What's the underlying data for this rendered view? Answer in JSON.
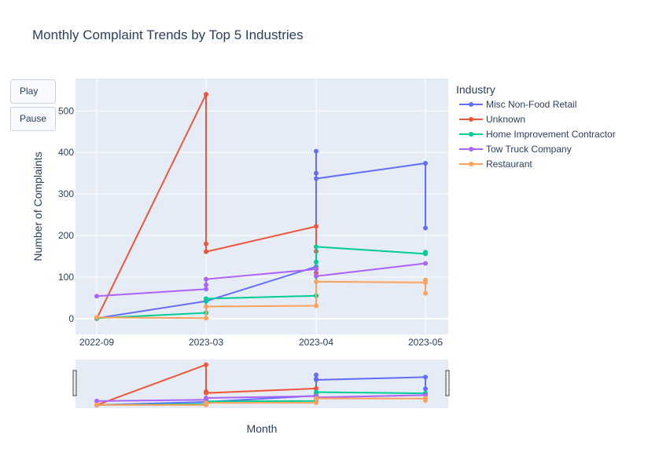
{
  "controls": {
    "play_label": "Play",
    "pause_label": "Pause"
  },
  "chart_data": {
    "type": "line",
    "title": "Monthly Complaint Trends by Top 5 Industries",
    "xlabel": "Month",
    "ylabel": "Number of Complaints",
    "legend_title": "Industry",
    "legend_position": "right",
    "grid": true,
    "x_categories": [
      "2022-09",
      "2023-03",
      "2023-04",
      "2023-05"
    ],
    "ylim": [
      -38,
      578
    ],
    "yticks": [
      0,
      100,
      200,
      300,
      400,
      500
    ],
    "series": [
      {
        "name": "Misc Non-Food Retail",
        "color": "#636efa",
        "x": [
          "2022-09",
          "2023-03",
          "2023-04",
          "2023-04",
          "2023-04",
          "2023-04",
          "2023-05",
          "2023-05"
        ],
        "y": [
          1,
          42,
          125,
          403,
          350,
          337,
          374,
          218
        ]
      },
      {
        "name": "Unknown",
        "color": "#ef553b",
        "x": [
          "2022-09",
          "2023-03",
          "2023-03",
          "2023-03",
          "2023-04",
          "2023-04",
          "2023-04",
          "2023-04"
        ],
        "y": [
          0,
          540,
          180,
          161,
          222,
          162,
          120,
          110
        ]
      },
      {
        "name": "Home Improvement Contractor",
        "color": "#00cc96",
        "x": [
          "2022-09",
          "2023-03",
          "2023-03",
          "2023-03",
          "2023-04",
          "2023-04",
          "2023-04",
          "2023-05",
          "2023-05"
        ],
        "y": [
          1,
          14,
          42,
          48,
          55,
          136,
          173,
          156,
          160
        ]
      },
      {
        "name": "Tow Truck Company",
        "color": "#ab63fa",
        "x": [
          "2022-09",
          "2023-03",
          "2023-03",
          "2023-03",
          "2023-04",
          "2023-04",
          "2023-05"
        ],
        "y": [
          54,
          71,
          81,
          95,
          119,
          102,
          133
        ]
      },
      {
        "name": "Restaurant",
        "color": "#ffa15a",
        "x": [
          "2022-09",
          "2023-03",
          "2023-03",
          "2023-04",
          "2023-04",
          "2023-05",
          "2023-05",
          "2023-05"
        ],
        "y": [
          3,
          1,
          29,
          31,
          89,
          87,
          93,
          61
        ]
      }
    ]
  }
}
